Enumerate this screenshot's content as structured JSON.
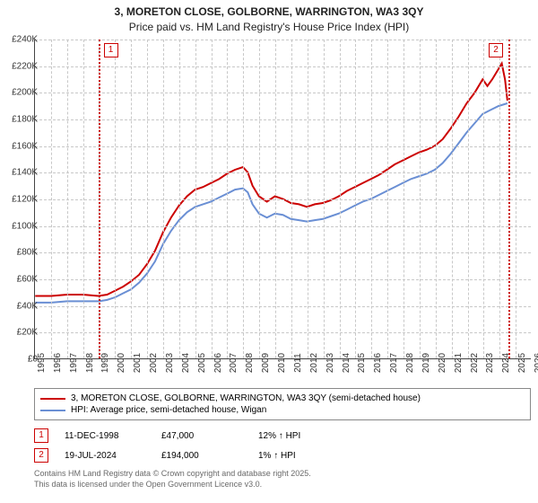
{
  "title_line1": "3, MORETON CLOSE, GOLBORNE, WARRINGTON, WA3 3QY",
  "title_line2": "Price paid vs. HM Land Registry's House Price Index (HPI)",
  "chart": {
    "type": "line",
    "background_color": "#ffffff",
    "grid_color": "#c8c8c8",
    "axis_color": "#444444",
    "label_fontsize": 10,
    "title_fontsize": 12,
    "x": {
      "min": 1995,
      "max": 2026,
      "tick_step": 1
    },
    "y": {
      "min": 0,
      "max": 240000,
      "tick_step": 20000,
      "tick_prefix": "£",
      "tick_suffix": "K",
      "tick_divisor": 1000
    },
    "series": [
      {
        "name": "3, MORETON CLOSE, GOLBORNE, WARRINGTON, WA3 3QY (semi-detached house)",
        "color": "#cc0000",
        "width": 2,
        "points": [
          [
            1995,
            47000
          ],
          [
            1996,
            47000
          ],
          [
            1997,
            48000
          ],
          [
            1998,
            48000
          ],
          [
            1998.95,
            47000
          ],
          [
            1999.5,
            48000
          ],
          [
            2000,
            51000
          ],
          [
            2000.5,
            54000
          ],
          [
            2001,
            58000
          ],
          [
            2001.5,
            63000
          ],
          [
            2002,
            71000
          ],
          [
            2002.5,
            81000
          ],
          [
            2003,
            95000
          ],
          [
            2003.5,
            106000
          ],
          [
            2004,
            115000
          ],
          [
            2004.5,
            122000
          ],
          [
            2005,
            127000
          ],
          [
            2005.5,
            129000
          ],
          [
            2006,
            132000
          ],
          [
            2006.5,
            135000
          ],
          [
            2007,
            139000
          ],
          [
            2007.5,
            142000
          ],
          [
            2008,
            144000
          ],
          [
            2008.3,
            140000
          ],
          [
            2008.6,
            130000
          ],
          [
            2009,
            122000
          ],
          [
            2009.5,
            118000
          ],
          [
            2010,
            122000
          ],
          [
            2010.5,
            120000
          ],
          [
            2011,
            117000
          ],
          [
            2011.5,
            116000
          ],
          [
            2012,
            114000
          ],
          [
            2012.5,
            116000
          ],
          [
            2013,
            117000
          ],
          [
            2013.5,
            119000
          ],
          [
            2014,
            122000
          ],
          [
            2014.5,
            126000
          ],
          [
            2015,
            129000
          ],
          [
            2015.5,
            132000
          ],
          [
            2016,
            135000
          ],
          [
            2016.5,
            138000
          ],
          [
            2017,
            142000
          ],
          [
            2017.5,
            146000
          ],
          [
            2018,
            149000
          ],
          [
            2018.5,
            152000
          ],
          [
            2019,
            155000
          ],
          [
            2019.5,
            157000
          ],
          [
            2020,
            160000
          ],
          [
            2020.5,
            165000
          ],
          [
            2021,
            173000
          ],
          [
            2021.5,
            182000
          ],
          [
            2022,
            192000
          ],
          [
            2022.5,
            200000
          ],
          [
            2023,
            210000
          ],
          [
            2023.3,
            205000
          ],
          [
            2023.6,
            210000
          ],
          [
            2024,
            218000
          ],
          [
            2024.2,
            222000
          ],
          [
            2024.4,
            210000
          ],
          [
            2024.55,
            194000
          ]
        ]
      },
      {
        "name": "HPI: Average price, semi-detached house, Wigan",
        "color": "#6a8fd4",
        "width": 2,
        "points": [
          [
            1995,
            42000
          ],
          [
            1996,
            42000
          ],
          [
            1997,
            43000
          ],
          [
            1998,
            43000
          ],
          [
            1999,
            43000
          ],
          [
            1999.5,
            44000
          ],
          [
            2000,
            46000
          ],
          [
            2000.5,
            49000
          ],
          [
            2001,
            52000
          ],
          [
            2001.5,
            57000
          ],
          [
            2002,
            64000
          ],
          [
            2002.5,
            73000
          ],
          [
            2003,
            86000
          ],
          [
            2003.5,
            96000
          ],
          [
            2004,
            104000
          ],
          [
            2004.5,
            110000
          ],
          [
            2005,
            114000
          ],
          [
            2005.5,
            116000
          ],
          [
            2006,
            118000
          ],
          [
            2006.5,
            121000
          ],
          [
            2007,
            124000
          ],
          [
            2007.5,
            127000
          ],
          [
            2008,
            128000
          ],
          [
            2008.3,
            125000
          ],
          [
            2008.6,
            116000
          ],
          [
            2009,
            109000
          ],
          [
            2009.5,
            106000
          ],
          [
            2010,
            109000
          ],
          [
            2010.5,
            108000
          ],
          [
            2011,
            105000
          ],
          [
            2011.5,
            104000
          ],
          [
            2012,
            103000
          ],
          [
            2012.5,
            104000
          ],
          [
            2013,
            105000
          ],
          [
            2013.5,
            107000
          ],
          [
            2014,
            109000
          ],
          [
            2014.5,
            112000
          ],
          [
            2015,
            115000
          ],
          [
            2015.5,
            118000
          ],
          [
            2016,
            120000
          ],
          [
            2016.5,
            123000
          ],
          [
            2017,
            126000
          ],
          [
            2017.5,
            129000
          ],
          [
            2018,
            132000
          ],
          [
            2018.5,
            135000
          ],
          [
            2019,
            137000
          ],
          [
            2019.5,
            139000
          ],
          [
            2020,
            142000
          ],
          [
            2020.5,
            147000
          ],
          [
            2021,
            154000
          ],
          [
            2021.5,
            162000
          ],
          [
            2022,
            170000
          ],
          [
            2022.5,
            177000
          ],
          [
            2023,
            184000
          ],
          [
            2023.5,
            187000
          ],
          [
            2024,
            190000
          ],
          [
            2024.55,
            192000
          ]
        ]
      }
    ],
    "markers": [
      {
        "id": "1",
        "x": 1998.95,
        "color": "#cc0000"
      },
      {
        "id": "2",
        "x": 2024.55,
        "color": "#cc0000"
      }
    ]
  },
  "legend": {
    "rows": [
      {
        "color": "#cc0000",
        "label": "3, MORETON CLOSE, GOLBORNE, WARRINGTON, WA3 3QY (semi-detached house)"
      },
      {
        "color": "#6a8fd4",
        "label": "HPI: Average price, semi-detached house, Wigan"
      }
    ]
  },
  "data_points": [
    {
      "id": "1",
      "color": "#cc0000",
      "date": "11-DEC-1998",
      "price": "£47,000",
      "hpi": "12% ↑ HPI"
    },
    {
      "id": "2",
      "color": "#cc0000",
      "date": "19-JUL-2024",
      "price": "£194,000",
      "hpi": "1% ↑ HPI"
    }
  ],
  "copyright": {
    "line1": "Contains HM Land Registry data © Crown copyright and database right 2025.",
    "line2": "This data is licensed under the Open Government Licence v3.0."
  }
}
